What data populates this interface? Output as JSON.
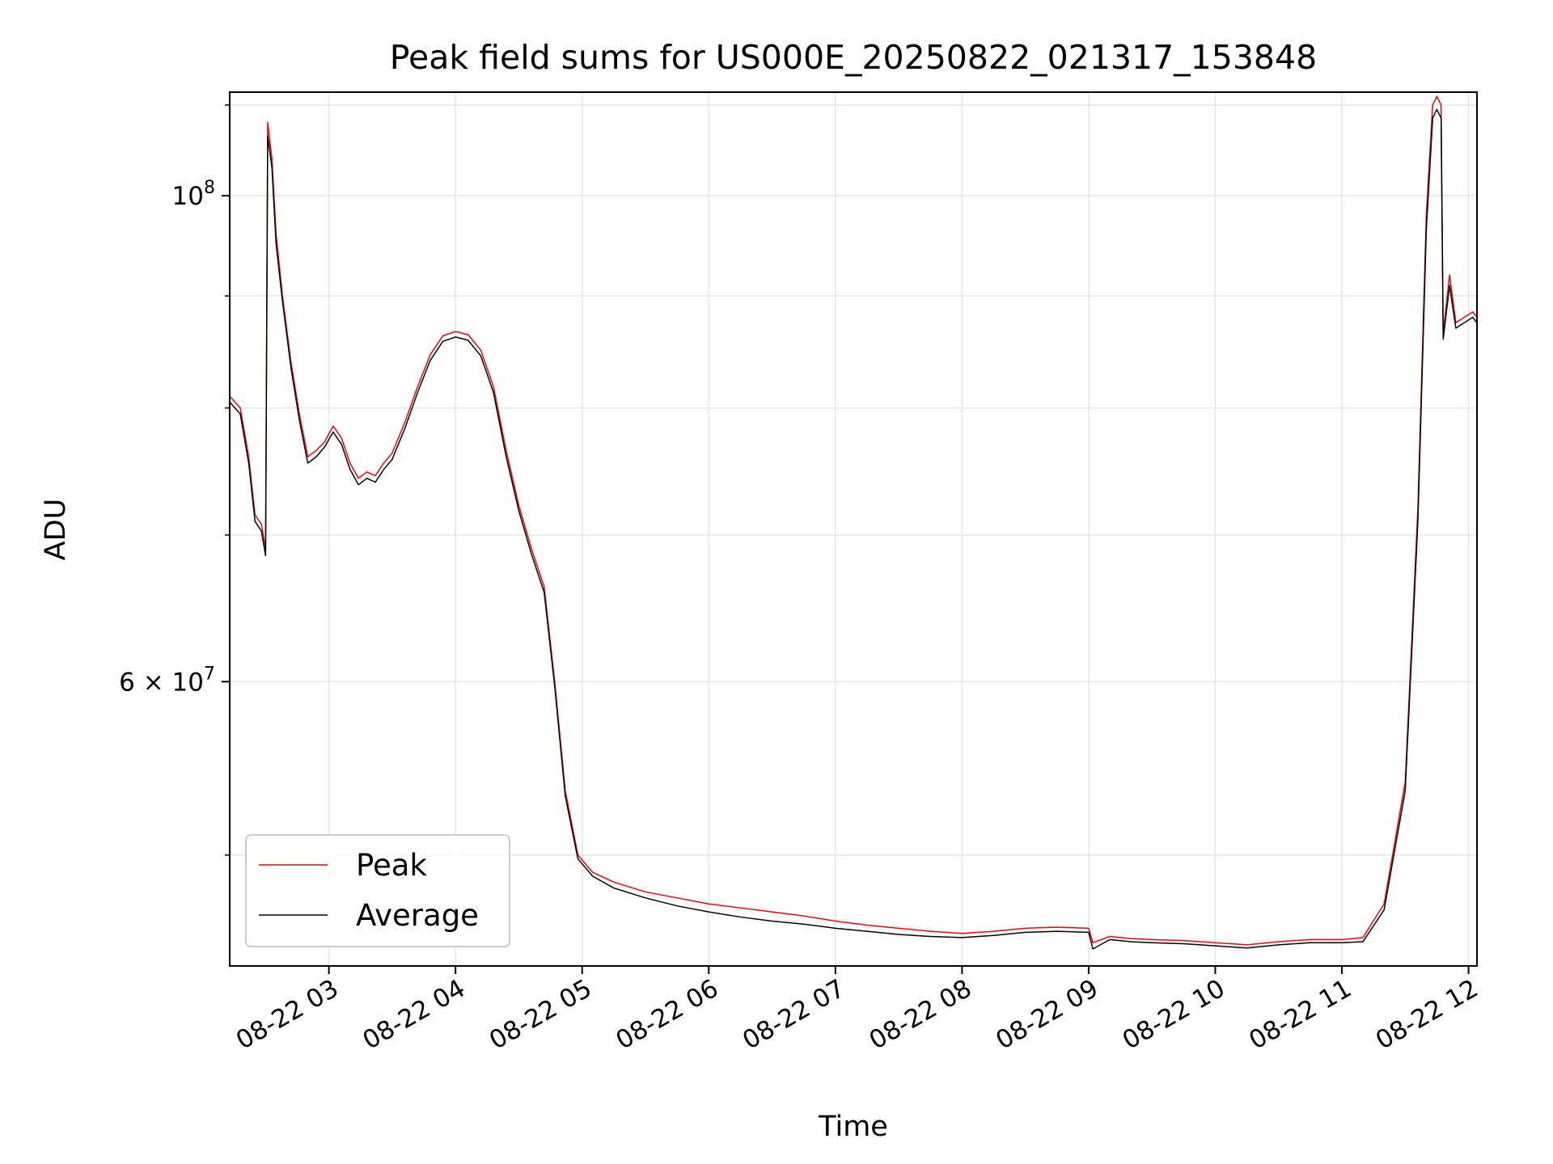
{
  "chart_data": {
    "type": "line",
    "title": "Peak field sums for US000E_20250822_021317_153848",
    "xlabel": "Time",
    "ylabel": "ADU",
    "yscale": "log",
    "grid": true,
    "legend_position": "lower-left",
    "x_ticks": [
      {
        "t": "2025-08-22T03:00",
        "label": "08-22 03"
      },
      {
        "t": "2025-08-22T04:00",
        "label": "08-22 04"
      },
      {
        "t": "2025-08-22T05:00",
        "label": "08-22 05"
      },
      {
        "t": "2025-08-22T06:00",
        "label": "08-22 06"
      },
      {
        "t": "2025-08-22T07:00",
        "label": "08-22 07"
      },
      {
        "t": "2025-08-22T08:00",
        "label": "08-22 08"
      },
      {
        "t": "2025-08-22T09:00",
        "label": "08-22 09"
      },
      {
        "t": "2025-08-22T10:00",
        "label": "08-22 10"
      },
      {
        "t": "2025-08-22T11:00",
        "label": "08-22 11"
      },
      {
        "t": "2025-08-22T12:00",
        "label": "08-22 12"
      }
    ],
    "y_ticks": [
      {
        "value": 60000000,
        "base": "6 × 10",
        "exp": "7"
      },
      {
        "value": 100000000,
        "base": "10",
        "exp": "8"
      }
    ],
    "xlim": [
      "2025-08-22T02:13",
      "2025-08-22T12:04"
    ],
    "ylim": [
      44500000,
      111500000
    ],
    "series": [
      {
        "name": "Peak",
        "color": "#ff0000",
        "points": [
          [
            "2025-08-22T02:13",
            81000000
          ],
          [
            "2025-08-22T02:18",
            80000000
          ],
          [
            "2025-08-22T02:22",
            76000000
          ],
          [
            "2025-08-22T02:25",
            71500000
          ],
          [
            "2025-08-22T02:28",
            70800000
          ],
          [
            "2025-08-22T02:30",
            69000000
          ],
          [
            "2025-08-22T02:31",
            108000000
          ],
          [
            "2025-08-22T02:33",
            104000000
          ],
          [
            "2025-08-22T02:35",
            96000000
          ],
          [
            "2025-08-22T02:38",
            90000000
          ],
          [
            "2025-08-22T02:42",
            84000000
          ],
          [
            "2025-08-22T02:46",
            79500000
          ],
          [
            "2025-08-22T02:50",
            76000000
          ],
          [
            "2025-08-22T02:54",
            76500000
          ],
          [
            "2025-08-22T02:58",
            77200000
          ],
          [
            "2025-08-22T03:02",
            78500000
          ],
          [
            "2025-08-22T03:06",
            77500000
          ],
          [
            "2025-08-22T03:10",
            75500000
          ],
          [
            "2025-08-22T03:14",
            74300000
          ],
          [
            "2025-08-22T03:18",
            74800000
          ],
          [
            "2025-08-22T03:22",
            74500000
          ],
          [
            "2025-08-22T03:26",
            75500000
          ],
          [
            "2025-08-22T03:30",
            76300000
          ],
          [
            "2025-08-22T03:36",
            78800000
          ],
          [
            "2025-08-22T03:42",
            81800000
          ],
          [
            "2025-08-22T03:48",
            84600000
          ],
          [
            "2025-08-22T03:54",
            86300000
          ],
          [
            "2025-08-22T04:00",
            86700000
          ],
          [
            "2025-08-22T04:06",
            86400000
          ],
          [
            "2025-08-22T04:12",
            85000000
          ],
          [
            "2025-08-22T04:18",
            81800000
          ],
          [
            "2025-08-22T04:24",
            76500000
          ],
          [
            "2025-08-22T04:30",
            72200000
          ],
          [
            "2025-08-22T04:36",
            69000000
          ],
          [
            "2025-08-22T04:42",
            66300000
          ],
          [
            "2025-08-22T04:47",
            60000000
          ],
          [
            "2025-08-22T04:52",
            53500000
          ],
          [
            "2025-08-22T04:58",
            50000000
          ],
          [
            "2025-08-22T05:05",
            49100000
          ],
          [
            "2025-08-22T05:15",
            48600000
          ],
          [
            "2025-08-22T05:30",
            48100000
          ],
          [
            "2025-08-22T05:45",
            47800000
          ],
          [
            "2025-08-22T06:00",
            47500000
          ],
          [
            "2025-08-22T06:15",
            47300000
          ],
          [
            "2025-08-22T06:30",
            47100000
          ],
          [
            "2025-08-22T06:45",
            46900000
          ],
          [
            "2025-08-22T07:00",
            46650000
          ],
          [
            "2025-08-22T07:15",
            46450000
          ],
          [
            "2025-08-22T07:30",
            46300000
          ],
          [
            "2025-08-22T07:45",
            46150000
          ],
          [
            "2025-08-22T08:00",
            46050000
          ],
          [
            "2025-08-22T08:15",
            46150000
          ],
          [
            "2025-08-22T08:30",
            46300000
          ],
          [
            "2025-08-22T08:45",
            46350000
          ],
          [
            "2025-08-22T09:00",
            46300000
          ],
          [
            "2025-08-22T09:02",
            45600000
          ],
          [
            "2025-08-22T09:10",
            45900000
          ],
          [
            "2025-08-22T09:20",
            45800000
          ],
          [
            "2025-08-22T09:30",
            45750000
          ],
          [
            "2025-08-22T09:45",
            45700000
          ],
          [
            "2025-08-22T10:00",
            45600000
          ],
          [
            "2025-08-22T10:15",
            45500000
          ],
          [
            "2025-08-22T10:30",
            45650000
          ],
          [
            "2025-08-22T10:45",
            45750000
          ],
          [
            "2025-08-22T11:00",
            45750000
          ],
          [
            "2025-08-22T11:10",
            45850000
          ],
          [
            "2025-08-22T11:20",
            47500000
          ],
          [
            "2025-08-22T11:30",
            54000000
          ],
          [
            "2025-08-22T11:36",
            72000000
          ],
          [
            "2025-08-22T11:40",
            98000000
          ],
          [
            "2025-08-22T11:43",
            110000000
          ],
          [
            "2025-08-22T11:45",
            111000000
          ],
          [
            "2025-08-22T11:47",
            110000000
          ],
          [
            "2025-08-22T11:48",
            86500000
          ],
          [
            "2025-08-22T11:51",
            92000000
          ],
          [
            "2025-08-22T11:54",
            87500000
          ],
          [
            "2025-08-22T11:58",
            88000000
          ],
          [
            "2025-08-22T12:02",
            88500000
          ],
          [
            "2025-08-22T12:04",
            88000000
          ]
        ]
      },
      {
        "name": "Average",
        "color": "#000000",
        "points": [
          [
            "2025-08-22T02:13",
            80500000
          ],
          [
            "2025-08-22T02:18",
            79500000
          ],
          [
            "2025-08-22T02:22",
            75500000
          ],
          [
            "2025-08-22T02:25",
            71000000
          ],
          [
            "2025-08-22T02:28",
            70300000
          ],
          [
            "2025-08-22T02:30",
            68500000
          ],
          [
            "2025-08-22T02:31",
            106500000
          ],
          [
            "2025-08-22T02:33",
            103000000
          ],
          [
            "2025-08-22T02:35",
            95000000
          ],
          [
            "2025-08-22T02:38",
            89500000
          ],
          [
            "2025-08-22T02:42",
            83500000
          ],
          [
            "2025-08-22T02:46",
            79000000
          ],
          [
            "2025-08-22T02:50",
            75500000
          ],
          [
            "2025-08-22T02:54",
            76000000
          ],
          [
            "2025-08-22T02:58",
            76800000
          ],
          [
            "2025-08-22T03:02",
            78000000
          ],
          [
            "2025-08-22T03:06",
            77000000
          ],
          [
            "2025-08-22T03:10",
            75000000
          ],
          [
            "2025-08-22T03:14",
            73800000
          ],
          [
            "2025-08-22T03:18",
            74300000
          ],
          [
            "2025-08-22T03:22",
            74000000
          ],
          [
            "2025-08-22T03:26",
            75000000
          ],
          [
            "2025-08-22T03:30",
            75800000
          ],
          [
            "2025-08-22T03:36",
            78300000
          ],
          [
            "2025-08-22T03:42",
            81300000
          ],
          [
            "2025-08-22T03:48",
            84100000
          ],
          [
            "2025-08-22T03:54",
            85800000
          ],
          [
            "2025-08-22T04:00",
            86200000
          ],
          [
            "2025-08-22T04:06",
            85900000
          ],
          [
            "2025-08-22T04:12",
            84500000
          ],
          [
            "2025-08-22T04:18",
            81300000
          ],
          [
            "2025-08-22T04:24",
            76000000
          ],
          [
            "2025-08-22T04:30",
            71800000
          ],
          [
            "2025-08-22T04:36",
            68600000
          ],
          [
            "2025-08-22T04:42",
            65900000
          ],
          [
            "2025-08-22T04:47",
            59700000
          ],
          [
            "2025-08-22T04:52",
            53200000
          ],
          [
            "2025-08-22T04:58",
            49800000
          ],
          [
            "2025-08-22T05:05",
            48900000
          ],
          [
            "2025-08-22T05:15",
            48300000
          ],
          [
            "2025-08-22T05:30",
            47800000
          ],
          [
            "2025-08-22T05:45",
            47400000
          ],
          [
            "2025-08-22T06:00",
            47100000
          ],
          [
            "2025-08-22T06:15",
            46850000
          ],
          [
            "2025-08-22T06:30",
            46650000
          ],
          [
            "2025-08-22T06:45",
            46500000
          ],
          [
            "2025-08-22T07:00",
            46300000
          ],
          [
            "2025-08-22T07:15",
            46150000
          ],
          [
            "2025-08-22T07:30",
            46000000
          ],
          [
            "2025-08-22T07:45",
            45900000
          ],
          [
            "2025-08-22T08:00",
            45850000
          ],
          [
            "2025-08-22T08:15",
            45950000
          ],
          [
            "2025-08-22T08:30",
            46100000
          ],
          [
            "2025-08-22T08:45",
            46150000
          ],
          [
            "2025-08-22T09:00",
            46100000
          ],
          [
            "2025-08-22T09:02",
            45300000
          ],
          [
            "2025-08-22T09:10",
            45750000
          ],
          [
            "2025-08-22T09:20",
            45650000
          ],
          [
            "2025-08-22T09:30",
            45600000
          ],
          [
            "2025-08-22T09:45",
            45550000
          ],
          [
            "2025-08-22T10:00",
            45450000
          ],
          [
            "2025-08-22T10:15",
            45350000
          ],
          [
            "2025-08-22T10:30",
            45500000
          ],
          [
            "2025-08-22T10:45",
            45600000
          ],
          [
            "2025-08-22T11:00",
            45600000
          ],
          [
            "2025-08-22T11:10",
            45650000
          ],
          [
            "2025-08-22T11:20",
            47200000
          ],
          [
            "2025-08-22T11:30",
            53500000
          ],
          [
            "2025-08-22T11:36",
            71000000
          ],
          [
            "2025-08-22T11:40",
            96500000
          ],
          [
            "2025-08-22T11:43",
            108500000
          ],
          [
            "2025-08-22T11:45",
            109500000
          ],
          [
            "2025-08-22T11:47",
            108500000
          ],
          [
            "2025-08-22T11:48",
            86000000
          ],
          [
            "2025-08-22T11:51",
            91000000
          ],
          [
            "2025-08-22T11:54",
            87000000
          ],
          [
            "2025-08-22T11:58",
            87500000
          ],
          [
            "2025-08-22T12:02",
            88000000
          ],
          [
            "2025-08-22T12:04",
            87500000
          ]
        ]
      }
    ]
  }
}
